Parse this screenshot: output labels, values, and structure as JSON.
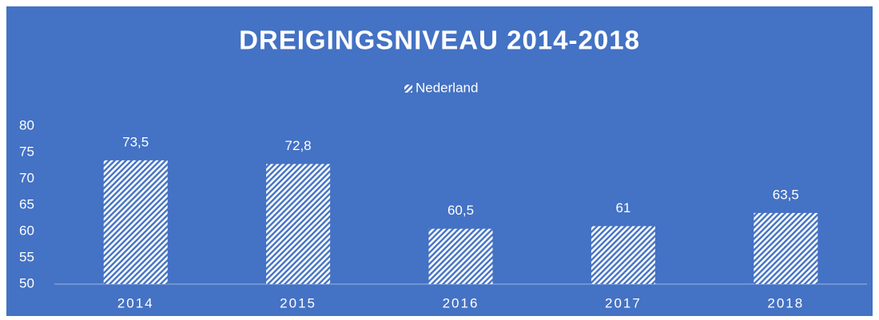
{
  "chart_data": {
    "type": "bar",
    "title": "DREIGINGSNIVEAU 2014-2018",
    "categories": [
      "2014",
      "2015",
      "2016",
      "2017",
      "2018"
    ],
    "series": [
      {
        "name": "Nederland",
        "color": "#ffffff",
        "hatch": true,
        "values": [
          73.5,
          72.8,
          60.5,
          61,
          63.5
        ],
        "value_labels": [
          "73,5",
          "72,8",
          "60,5",
          "61",
          "63,5"
        ]
      }
    ],
    "ylim": [
      50,
      80
    ],
    "yticks": [
      50,
      55,
      60,
      65,
      70,
      75,
      80
    ],
    "grid": false,
    "legend": "top",
    "background": "#4472c4"
  }
}
